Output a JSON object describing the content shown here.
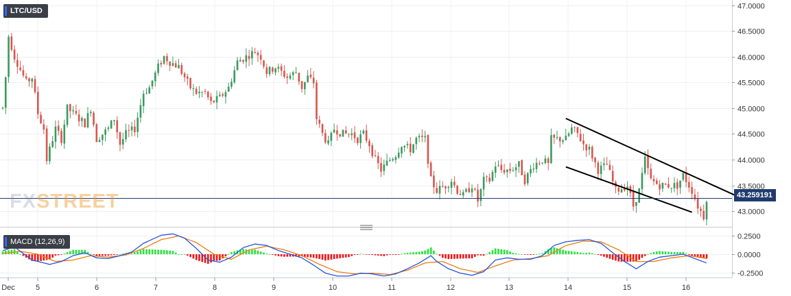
{
  "header": {
    "symbol": "LTC/USD"
  },
  "watermark": {
    "part1": "FX",
    "part2": "STREET"
  },
  "price_label": "43.259191",
  "macd_label": "MACD (12,26,9)",
  "colors": {
    "bull": "#3c9a5f",
    "bear": "#d9564e",
    "hist_pos": "#27e43c",
    "hist_neg": "#f21616",
    "macd_line": "#2255dd",
    "signal_line": "#f07a10",
    "price_line": "#1f3b6e",
    "badge_stripe": "#2f6bff",
    "channel": "#000000"
  },
  "chart_data": [
    {
      "type": "candlestick",
      "title": "LTC/USD",
      "ylim": [
        42.75,
        47.1
      ],
      "yticks": [
        "47.0000",
        "46.5000",
        "46.0000",
        "45.5000",
        "45.0000",
        "44.5000",
        "44.0000",
        "43.5000",
        "43.0000"
      ],
      "last_price": 43.259191,
      "x_labels": [
        "Dec",
        "5",
        "6",
        "7",
        "8",
        "9",
        "10",
        "11",
        "12",
        "13",
        "14",
        "15",
        "16"
      ],
      "key_points": [
        [
          0,
          45.0
        ],
        [
          1,
          45.6
        ],
        [
          2,
          46.4
        ],
        [
          4,
          46.0
        ],
        [
          8,
          45.5
        ],
        [
          10,
          45.6
        ],
        [
          12,
          44.9
        ],
        [
          14,
          44.6
        ],
        [
          15,
          44.0
        ],
        [
          18,
          44.6
        ],
        [
          20,
          44.4
        ],
        [
          22,
          45.0
        ],
        [
          24,
          44.9
        ],
        [
          28,
          44.7
        ],
        [
          30,
          45.0
        ],
        [
          32,
          44.4
        ],
        [
          34,
          44.5
        ],
        [
          36,
          44.6
        ],
        [
          38,
          44.8
        ],
        [
          40,
          44.3
        ],
        [
          42,
          44.5
        ],
        [
          45,
          44.6
        ],
        [
          48,
          45.3
        ],
        [
          50,
          45.4
        ],
        [
          53,
          45.8
        ],
        [
          55,
          46.0
        ],
        [
          57,
          45.9
        ],
        [
          60,
          45.8
        ],
        [
          62,
          45.6
        ],
        [
          64,
          45.4
        ],
        [
          66,
          45.3
        ],
        [
          69,
          45.3
        ],
        [
          71,
          45.1
        ],
        [
          74,
          45.2
        ],
        [
          77,
          45.4
        ],
        [
          80,
          45.9
        ],
        [
          83,
          46.0
        ],
        [
          86,
          46.1
        ],
        [
          88,
          46.0
        ],
        [
          90,
          45.7
        ],
        [
          93,
          45.8
        ],
        [
          95,
          45.7
        ],
        [
          97,
          45.6
        ],
        [
          100,
          45.7
        ],
        [
          102,
          45.4
        ],
        [
          104,
          45.6
        ],
        [
          106,
          45.5
        ],
        [
          107,
          44.8
        ],
        [
          109,
          44.5
        ],
        [
          111,
          44.3
        ],
        [
          113,
          44.6
        ],
        [
          116,
          44.5
        ],
        [
          119,
          44.5
        ],
        [
          121,
          44.4
        ],
        [
          123,
          44.5
        ],
        [
          125,
          44.3
        ],
        [
          127,
          44.0
        ],
        [
          129,
          43.8
        ],
        [
          132,
          44.0
        ],
        [
          134,
          44.1
        ],
        [
          136,
          44.3
        ],
        [
          139,
          44.2
        ],
        [
          141,
          44.4
        ],
        [
          144,
          44.4
        ],
        [
          146,
          43.6
        ],
        [
          148,
          43.4
        ],
        [
          151,
          43.5
        ],
        [
          153,
          43.6
        ],
        [
          155,
          43.4
        ],
        [
          157,
          43.3
        ],
        [
          160,
          43.5
        ],
        [
          162,
          43.2
        ],
        [
          164,
          43.6
        ],
        [
          166,
          43.6
        ],
        [
          168,
          43.9
        ],
        [
          170,
          43.8
        ],
        [
          173,
          43.8
        ],
        [
          176,
          43.9
        ],
        [
          178,
          43.6
        ],
        [
          181,
          43.9
        ],
        [
          184,
          44.0
        ],
        [
          186,
          43.9
        ],
        [
          187,
          44.4
        ],
        [
          190,
          44.4
        ],
        [
          192,
          44.4
        ],
        [
          194,
          44.6
        ],
        [
          196,
          44.5
        ],
        [
          198,
          44.3
        ],
        [
          200,
          44.2
        ],
        [
          203,
          43.8
        ],
        [
          206,
          43.9
        ],
        [
          209,
          43.4
        ],
        [
          213,
          43.5
        ],
        [
          215,
          43.1
        ],
        [
          217,
          43.4
        ],
        [
          219,
          44.0
        ],
        [
          221,
          43.6
        ],
        [
          224,
          43.5
        ],
        [
          227,
          43.5
        ],
        [
          230,
          43.5
        ],
        [
          232,
          43.7
        ],
        [
          235,
          43.4
        ],
        [
          237,
          43.1
        ],
        [
          239,
          42.9
        ],
        [
          240,
          43.26
        ]
      ],
      "channel_lines": [
        {
          "from": [
            192,
            44.8
          ],
          "to": [
            252,
            43.25
          ]
        },
        {
          "from": [
            192,
            43.86
          ],
          "to": [
            235,
            42.98
          ]
        }
      ]
    },
    {
      "type": "histogram+line",
      "title": "MACD (12,26,9)",
      "ylim": [
        -0.32,
        0.32
      ],
      "yticks": [
        "0.2500",
        "0.0000",
        "-0.2500"
      ],
      "macd_key_points": [
        [
          0,
          0.05
        ],
        [
          4,
          0.1
        ],
        [
          10,
          -0.08
        ],
        [
          16,
          -0.14
        ],
        [
          20,
          -0.1
        ],
        [
          24,
          -0.02
        ],
        [
          28,
          0.02
        ],
        [
          32,
          -0.05
        ],
        [
          36,
          -0.06
        ],
        [
          40,
          -0.02
        ],
        [
          44,
          0.03
        ],
        [
          48,
          0.15
        ],
        [
          54,
          0.26
        ],
        [
          58,
          0.28
        ],
        [
          62,
          0.22
        ],
        [
          66,
          0.08
        ],
        [
          70,
          -0.08
        ],
        [
          74,
          -0.11
        ],
        [
          78,
          -0.04
        ],
        [
          82,
          0.09
        ],
        [
          86,
          0.14
        ],
        [
          90,
          0.12
        ],
        [
          94,
          0.05
        ],
        [
          98,
          0.0
        ],
        [
          102,
          -0.05
        ],
        [
          106,
          -0.15
        ],
        [
          110,
          -0.26
        ],
        [
          114,
          -0.3
        ],
        [
          118,
          -0.3
        ],
        [
          122,
          -0.26
        ],
        [
          126,
          -0.27
        ],
        [
          130,
          -0.3
        ],
        [
          134,
          -0.27
        ],
        [
          138,
          -0.2
        ],
        [
          142,
          -0.12
        ],
        [
          146,
          -0.02
        ],
        [
          148,
          -0.1
        ],
        [
          152,
          -0.2
        ],
        [
          156,
          -0.26
        ],
        [
          160,
          -0.29
        ],
        [
          164,
          -0.24
        ],
        [
          168,
          -0.08
        ],
        [
          172,
          -0.05
        ],
        [
          176,
          -0.07
        ],
        [
          180,
          -0.07
        ],
        [
          184,
          -0.02
        ],
        [
          188,
          0.12
        ],
        [
          192,
          0.17
        ],
        [
          196,
          0.19
        ],
        [
          200,
          0.2
        ],
        [
          204,
          0.15
        ],
        [
          208,
          0.02
        ],
        [
          212,
          -0.1
        ],
        [
          216,
          -0.2
        ],
        [
          220,
          -0.1
        ],
        [
          224,
          -0.04
        ],
        [
          228,
          -0.02
        ],
        [
          232,
          0.0
        ],
        [
          236,
          -0.06
        ],
        [
          240,
          -0.12
        ]
      ],
      "signal_key_points": [
        [
          0,
          0.01
        ],
        [
          6,
          0.04
        ],
        [
          12,
          0.0
        ],
        [
          18,
          -0.1
        ],
        [
          24,
          -0.08
        ],
        [
          30,
          -0.02
        ],
        [
          36,
          -0.04
        ],
        [
          42,
          -0.01
        ],
        [
          48,
          0.08
        ],
        [
          54,
          0.2
        ],
        [
          60,
          0.25
        ],
        [
          66,
          0.16
        ],
        [
          72,
          0.0
        ],
        [
          78,
          -0.07
        ],
        [
          84,
          0.06
        ],
        [
          90,
          0.11
        ],
        [
          96,
          0.06
        ],
        [
          102,
          -0.02
        ],
        [
          108,
          -0.14
        ],
        [
          114,
          -0.24
        ],
        [
          120,
          -0.27
        ],
        [
          126,
          -0.26
        ],
        [
          132,
          -0.28
        ],
        [
          138,
          -0.22
        ],
        [
          144,
          -0.12
        ],
        [
          150,
          -0.1
        ],
        [
          156,
          -0.2
        ],
        [
          162,
          -0.25
        ],
        [
          168,
          -0.16
        ],
        [
          174,
          -0.08
        ],
        [
          180,
          -0.06
        ],
        [
          186,
          -0.02
        ],
        [
          192,
          0.12
        ],
        [
          198,
          0.18
        ],
        [
          204,
          0.17
        ],
        [
          210,
          0.06
        ],
        [
          216,
          -0.1
        ],
        [
          222,
          -0.1
        ],
        [
          228,
          -0.05
        ],
        [
          234,
          -0.02
        ],
        [
          240,
          -0.06
        ]
      ]
    }
  ]
}
